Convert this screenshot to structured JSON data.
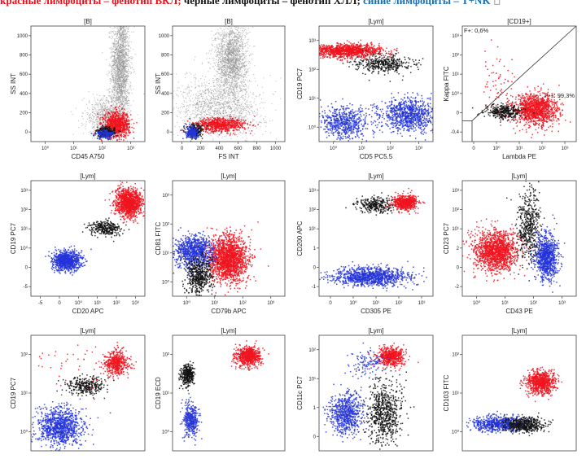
{
  "banner": {
    "red": "красные лимфоциты – фенотип ВКЛ;",
    "black": " черные лимфоциты – фенотип ХЛЛ;",
    "blue": " синие лимфоциты – T+NK"
  },
  "colors": {
    "red": "#f0141e",
    "black": "#111111",
    "blue": "#2334d8",
    "gray": "#8c8c8c",
    "banner_red": "#e8101a",
    "banner_blue": "#1a6fb0"
  },
  "chart_data": [
    {
      "id": "p1",
      "type": "scatter",
      "title": "[B]",
      "xlabel": "CD45 A750",
      "ylabel": "SS INT",
      "x_ticks": [
        "10⁰",
        "10¹",
        "10²",
        "10³"
      ],
      "y_ticks": [
        "0",
        "200",
        "400",
        "600",
        "800",
        "1000"
      ],
      "xlim": [
        0,
        3
      ],
      "ylim": [
        0,
        1000
      ],
      "populations": [
        {
          "color": "gray",
          "cx": 2.35,
          "cy": 650,
          "sx": 0.12,
          "sy": 260,
          "n": 2200
        },
        {
          "color": "gray",
          "cx": 1.95,
          "cy": 220,
          "sx": 0.28,
          "sy": 90,
          "n": 700
        },
        {
          "color": "red",
          "cx": 2.25,
          "cy": 150,
          "sx": 0.17,
          "sy": 55,
          "n": 800
        },
        {
          "color": "black",
          "cx": 1.95,
          "cy": 85,
          "sx": 0.12,
          "sy": 22,
          "n": 300
        },
        {
          "color": "blue",
          "cx": 1.95,
          "cy": 70,
          "sx": 0.12,
          "sy": 20,
          "n": 150
        }
      ]
    },
    {
      "id": "p2",
      "type": "scatter",
      "title": "[B]",
      "xlabel": "FS INT",
      "ylabel": "SS INT",
      "x_ticks": [
        "0",
        "200",
        "400",
        "600",
        "800",
        "1000"
      ],
      "y_ticks": [
        "0",
        "200",
        "400",
        "600",
        "800",
        "1000"
      ],
      "xlim": [
        0,
        1000
      ],
      "ylim": [
        0,
        1000
      ],
      "populations": [
        {
          "color": "gray",
          "cx": 520,
          "cy": 720,
          "sx": 70,
          "sy": 150,
          "n": 1800
        },
        {
          "color": "gray",
          "cx": 420,
          "cy": 300,
          "sx": 190,
          "sy": 130,
          "n": 1400
        },
        {
          "color": "red",
          "cx": 420,
          "cy": 150,
          "sx": 110,
          "sy": 30,
          "n": 700
        },
        {
          "color": "black",
          "cx": 190,
          "cy": 95,
          "sx": 35,
          "sy": 28,
          "n": 250
        },
        {
          "color": "blue",
          "cx": 175,
          "cy": 80,
          "sx": 30,
          "sy": 25,
          "n": 200
        }
      ]
    },
    {
      "id": "p3",
      "type": "scatter",
      "title": "[Lym]",
      "xlabel": "CD5 PC5.5",
      "ylabel": "CD19 PC7",
      "x_ticks": [
        "10⁰",
        "10¹",
        "10²",
        "10³"
      ],
      "y_ticks": [
        "10⁰",
        "10¹",
        "10²",
        "10³"
      ],
      "xlim": [
        -0.5,
        3.2
      ],
      "ylim": [
        -0.4,
        3.2
      ],
      "populations": [
        {
          "color": "red",
          "cx": 0.4,
          "cy": 2.45,
          "sx": 0.55,
          "sy": 0.1,
          "n": 1200
        },
        {
          "color": "black",
          "cx": 1.6,
          "cy": 2.05,
          "sx": 0.45,
          "sy": 0.14,
          "n": 400
        },
        {
          "color": "blue",
          "cx": 0.3,
          "cy": 0.2,
          "sx": 0.4,
          "sy": 0.25,
          "n": 600
        },
        {
          "color": "blue",
          "cx": 2.4,
          "cy": 0.45,
          "sx": 0.45,
          "sy": 0.25,
          "n": 900
        }
      ]
    },
    {
      "id": "p4",
      "type": "scatter",
      "title": "[CD19+]",
      "xlabel": "Lambda PE",
      "ylabel": "Kappa FITC",
      "x_ticks": [
        "0",
        "10⁰",
        "10¹",
        "10²",
        "10³"
      ],
      "y_ticks": [
        "-0,4",
        "0",
        "10⁰",
        "10¹",
        "10²",
        "10³"
      ],
      "xlim": [
        -0.4,
        3.2
      ],
      "ylim": [
        -0.4,
        3.2
      ],
      "quadrant_labels": [
        "F+: 0,6%",
        "F-+: 99,3%"
      ],
      "populations": [
        {
          "color": "red",
          "cx": 1.9,
          "cy": 0.6,
          "sx": 0.35,
          "sy": 0.25,
          "n": 1200
        },
        {
          "color": "black",
          "cx": 0.9,
          "cy": 0.55,
          "sx": 0.28,
          "sy": 0.12,
          "n": 350
        },
        {
          "color": "red",
          "cx": 0.7,
          "cy": 1.5,
          "sx": 0.3,
          "sy": 0.5,
          "n": 60
        }
      ]
    },
    {
      "id": "p5",
      "type": "scatter",
      "title": "[Lym]",
      "xlabel": "CD20 APC",
      "ylabel": "CD19 PC7",
      "x_ticks": [
        "-5",
        "0",
        "10⁰",
        "10¹",
        "10²",
        "10³"
      ],
      "y_ticks": [
        "-5",
        "0",
        "10⁰",
        "10¹",
        "10²",
        "10³"
      ],
      "xlim": [
        -1.6,
        3.2
      ],
      "ylim": [
        -1.6,
        3.2
      ],
      "populations": [
        {
          "color": "red",
          "cx": 2.5,
          "cy": 2.3,
          "sx": 0.28,
          "sy": 0.28,
          "n": 1200
        },
        {
          "color": "black",
          "cx": 1.5,
          "cy": 1.25,
          "sx": 0.35,
          "sy": 0.15,
          "n": 300
        },
        {
          "color": "blue",
          "cx": -0.1,
          "cy": -0.1,
          "sx": 0.3,
          "sy": 0.2,
          "n": 900
        }
      ]
    },
    {
      "id": "p6",
      "type": "scatter",
      "title": "[Lym]",
      "xlabel": "CD79b APC",
      "ylabel": "CD81 FITC",
      "x_ticks": [
        "10⁰",
        "10¹",
        "10²",
        "10³"
      ],
      "y_ticks": [
        "10⁰",
        "10¹",
        "10²",
        "10³"
      ],
      "xlim": [
        -0.3,
        3.2
      ],
      "ylim": [
        -0.3,
        3.2
      ],
      "populations": [
        {
          "color": "red",
          "cx": 1.4,
          "cy": 0.85,
          "sx": 0.3,
          "sy": 0.35,
          "n": 1800
        },
        {
          "color": "blue",
          "cx": 0.35,
          "cy": 1.05,
          "sx": 0.3,
          "sy": 0.25,
          "n": 900
        },
        {
          "color": "black",
          "cx": 0.5,
          "cy": 0.3,
          "sx": 0.2,
          "sy": 0.3,
          "n": 500
        }
      ]
    },
    {
      "id": "p7",
      "type": "scatter",
      "title": "[Lym]",
      "xlabel": "CD305 PE",
      "ylabel": "CD200 APC",
      "x_ticks": [
        "0",
        "10⁰",
        "10¹",
        "10²",
        "10³"
      ],
      "y_ticks": [
        "-1",
        "0",
        "1",
        "10¹",
        "10²",
        "10³"
      ],
      "xlim": [
        -0.4,
        3.2
      ],
      "ylim": [
        -1.4,
        3.2
      ],
      "populations": [
        {
          "color": "black",
          "cx": 1.4,
          "cy": 2.25,
          "sx": 0.3,
          "sy": 0.15,
          "n": 300
        },
        {
          "color": "red",
          "cx": 2.3,
          "cy": 2.35,
          "sx": 0.2,
          "sy": 0.15,
          "n": 600
        },
        {
          "color": "blue",
          "cx": 1.2,
          "cy": -0.6,
          "sx": 0.6,
          "sy": 0.18,
          "n": 1100
        }
      ]
    },
    {
      "id": "p8",
      "type": "scatter",
      "title": "[Lym]",
      "xlabel": "CD43 PE",
      "ylabel": "CD23 PC7",
      "x_ticks": [
        "10⁰",
        "10¹",
        "10²",
        "10³"
      ],
      "y_ticks": [
        "-2",
        "0",
        "2",
        "10¹",
        "10²",
        "10³"
      ],
      "xlim": [
        -0.6,
        3.2
      ],
      "ylim": [
        -2.6,
        3.2
      ],
      "populations": [
        {
          "color": "red",
          "cx": 0.5,
          "cy": -0.3,
          "sx": 0.35,
          "sy": 0.5,
          "n": 1500
        },
        {
          "color": "black",
          "cx": 1.6,
          "cy": 0.9,
          "sx": 0.2,
          "sy": 0.9,
          "n": 500
        },
        {
          "color": "blue",
          "cx": 2.2,
          "cy": -0.6,
          "sx": 0.18,
          "sy": 0.6,
          "n": 900
        }
      ]
    },
    {
      "id": "p9",
      "type": "scatter",
      "title": "[Lym]",
      "xlabel": "",
      "ylabel": "CD19 PC7",
      "x_ticks": [],
      "y_ticks": [
        "10⁰",
        "10¹",
        "10²"
      ],
      "xlim": [
        -0.3,
        3.2
      ],
      "ylim": [
        -0.3,
        2.8
      ],
      "populations": [
        {
          "color": "red",
          "cx": 2.3,
          "cy": 2.05,
          "sx": 0.18,
          "sy": 0.16,
          "n": 500
        },
        {
          "color": "black",
          "cx": 1.35,
          "cy": 1.45,
          "sx": 0.3,
          "sy": 0.12,
          "n": 300
        },
        {
          "color": "blue",
          "cx": 0.6,
          "cy": 0.35,
          "sx": 0.35,
          "sy": 0.25,
          "n": 1000
        },
        {
          "color": "red",
          "cx": 0.9,
          "cy": 1.9,
          "sx": 0.6,
          "sy": 0.4,
          "n": 40
        }
      ]
    },
    {
      "id": "p10",
      "type": "scatter",
      "title": "[Lym]",
      "xlabel": "",
      "ylabel": "CD19 ECD",
      "x_ticks": [],
      "y_ticks": [
        "10⁰",
        "10¹",
        "10²"
      ],
      "xlim": [
        -0.3,
        3.2
      ],
      "ylim": [
        -0.3,
        2.8
      ],
      "populations": [
        {
          "color": "red",
          "cx": 2.05,
          "cy": 2.25,
          "sx": 0.2,
          "sy": 0.13,
          "n": 700
        },
        {
          "color": "black",
          "cx": 0.15,
          "cy": 1.75,
          "sx": 0.1,
          "sy": 0.15,
          "n": 350
        },
        {
          "color": "blue",
          "cx": 0.25,
          "cy": 0.55,
          "sx": 0.12,
          "sy": 0.22,
          "n": 400
        }
      ]
    },
    {
      "id": "p11",
      "type": "scatter",
      "title": "[Lym]",
      "xlabel": "",
      "ylabel": "CD11c PC7",
      "x_ticks": [],
      "y_ticks": [
        "0",
        "1",
        "10¹",
        "10²"
      ],
      "xlim": [
        -0.3,
        3.2
      ],
      "ylim": [
        -0.6,
        2.8
      ],
      "populations": [
        {
          "color": "red",
          "cx": 1.9,
          "cy": 2.2,
          "sx": 0.2,
          "sy": 0.14,
          "n": 600
        },
        {
          "color": "black",
          "cx": 1.7,
          "cy": 0.55,
          "sx": 0.28,
          "sy": 0.45,
          "n": 700
        },
        {
          "color": "blue",
          "cx": 0.5,
          "cy": 0.5,
          "sx": 0.25,
          "sy": 0.3,
          "n": 700
        },
        {
          "color": "blue",
          "cx": 1.2,
          "cy": 2.0,
          "sx": 0.3,
          "sy": 0.2,
          "n": 120
        }
      ]
    },
    {
      "id": "p12",
      "type": "scatter",
      "title": "[Lym]",
      "xlabel": "",
      "ylabel": "CD103 FITC",
      "x_ticks": [],
      "y_ticks": [
        "10⁰",
        "10¹",
        "10²"
      ],
      "xlim": [
        -0.3,
        3.2
      ],
      "ylim": [
        -0.3,
        2.8
      ],
      "populations": [
        {
          "color": "red",
          "cx": 2.1,
          "cy": 1.55,
          "sx": 0.22,
          "sy": 0.15,
          "n": 800
        },
        {
          "color": "blue",
          "cx": 0.8,
          "cy": 0.45,
          "sx": 0.4,
          "sy": 0.1,
          "n": 700
        },
        {
          "color": "black",
          "cx": 1.6,
          "cy": 0.42,
          "sx": 0.3,
          "sy": 0.1,
          "n": 500
        }
      ]
    }
  ]
}
